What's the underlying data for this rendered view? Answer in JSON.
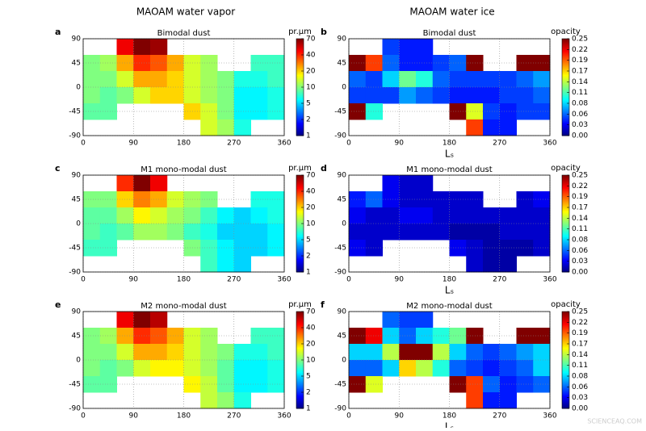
{
  "figure": {
    "column_titles": [
      "MAOAM water vapor",
      "MAOAM water ice"
    ],
    "watermark": "SCIENCEAQ.COM"
  },
  "chart_data": [
    {
      "type": "heatmap",
      "panel_label": "a",
      "title": "Bimodal dust",
      "colorbar_label": "pr.µm",
      "colorscale": "jet",
      "colorbar_ticks": [
        1,
        2,
        5,
        10,
        20,
        40,
        70
      ],
      "x": [
        15,
        45,
        75,
        105,
        135,
        165,
        195,
        225,
        255,
        285,
        315,
        345
      ],
      "y": [
        75,
        45,
        15,
        -15,
        -45,
        -75
      ],
      "xlim": [
        0,
        360
      ],
      "ylim": [
        -90,
        90
      ],
      "xticks": [
        0,
        90,
        180,
        270,
        360
      ],
      "yticks": [
        -90,
        -45,
        0,
        45,
        90
      ],
      "grid": true,
      "values": [
        [
          null,
          null,
          50,
          70,
          65,
          null,
          null,
          null,
          null,
          null,
          null,
          null
        ],
        [
          10,
          12,
          25,
          40,
          35,
          25,
          15,
          12,
          null,
          null,
          8,
          8
        ],
        [
          10,
          10,
          15,
          25,
          25,
          20,
          15,
          12,
          10,
          7,
          7,
          8
        ],
        [
          10,
          9,
          10,
          15,
          20,
          20,
          15,
          12,
          10,
          6,
          6,
          7
        ],
        [
          9,
          9,
          null,
          null,
          null,
          null,
          20,
          15,
          10,
          6,
          6,
          7
        ],
        [
          null,
          null,
          null,
          null,
          null,
          null,
          null,
          15,
          12,
          7,
          null,
          null
        ]
      ]
    },
    {
      "type": "heatmap",
      "panel_label": "b",
      "title": "Bimodal dust",
      "colorbar_label": "opacity",
      "colorscale": "jet",
      "xlabel": "Lₛ",
      "colorbar_ticks": [
        {
          "value": 0,
          "label": "0.00"
        },
        0.03,
        0.06,
        0.08,
        0.11,
        0.14,
        0.17,
        0.19,
        0.22,
        0.25
      ],
      "x": [
        15,
        45,
        75,
        105,
        135,
        165,
        195,
        225,
        255,
        285,
        315,
        345
      ],
      "y": [
        75,
        45,
        15,
        -15,
        -45,
        -75
      ],
      "xlim": [
        0,
        360
      ],
      "ylim": [
        -90,
        90
      ],
      "xticks": [
        0,
        90,
        180,
        270,
        360
      ],
      "yticks": [
        -90,
        -45,
        0,
        45,
        90
      ],
      "grid": true,
      "values": [
        [
          null,
          null,
          0.05,
          0.04,
          0.04,
          null,
          null,
          null,
          null,
          null,
          null,
          null
        ],
        [
          0.25,
          0.2,
          0.06,
          0.04,
          0.04,
          0.05,
          0.06,
          0.25,
          null,
          null,
          0.25,
          0.25
        ],
        [
          0.06,
          0.05,
          0.08,
          0.12,
          0.1,
          0.06,
          0.05,
          0.05,
          0.05,
          0.05,
          0.06,
          0.07
        ],
        [
          0.05,
          0.05,
          0.05,
          0.07,
          0.06,
          0.05,
          0.04,
          0.04,
          0.04,
          0.05,
          0.05,
          0.06
        ],
        [
          0.25,
          0.1,
          null,
          null,
          null,
          null,
          0.25,
          0.15,
          0.05,
          0.04,
          0.05,
          0.05
        ],
        [
          null,
          null,
          null,
          null,
          null,
          null,
          null,
          0.2,
          0.04,
          0.04,
          null,
          null
        ]
      ]
    },
    {
      "type": "heatmap",
      "panel_label": "c",
      "title": "M1 mono-modal dust",
      "colorbar_label": "pr.µm",
      "colorscale": "jet",
      "colorbar_ticks": [
        1,
        2,
        5,
        10,
        20,
        40,
        70
      ],
      "x": [
        15,
        45,
        75,
        105,
        135,
        165,
        195,
        225,
        255,
        285,
        315,
        345
      ],
      "y": [
        75,
        45,
        15,
        -15,
        -45,
        -75
      ],
      "xlim": [
        0,
        360
      ],
      "ylim": [
        -90,
        90
      ],
      "xticks": [
        0,
        90,
        180,
        270,
        360
      ],
      "yticks": [
        -90,
        -45,
        0,
        45,
        90
      ],
      "grid": true,
      "values": [
        [
          null,
          null,
          40,
          70,
          50,
          null,
          null,
          null,
          null,
          null,
          null,
          null
        ],
        [
          10,
          10,
          20,
          30,
          25,
          15,
          12,
          10,
          null,
          null,
          7,
          7
        ],
        [
          9,
          9,
          12,
          18,
          15,
          12,
          10,
          8,
          6,
          5,
          6,
          7
        ],
        [
          9,
          8,
          9,
          12,
          12,
          10,
          8,
          7,
          5,
          5,
          5,
          6
        ],
        [
          8,
          8,
          null,
          null,
          null,
          null,
          10,
          8,
          6,
          5,
          5,
          6
        ],
        [
          null,
          null,
          null,
          null,
          null,
          null,
          null,
          8,
          6,
          5,
          null,
          null
        ]
      ]
    },
    {
      "type": "heatmap",
      "panel_label": "d",
      "title": "M1 mono-modal dust",
      "colorbar_label": "opacity",
      "colorscale": "jet",
      "xlabel": "Lₛ",
      "colorbar_ticks": [
        {
          "value": 0,
          "label": "0.00"
        },
        0.03,
        0.06,
        0.08,
        0.11,
        0.14,
        0.17,
        0.19,
        0.22,
        0.25
      ],
      "x": [
        15,
        45,
        75,
        105,
        135,
        165,
        195,
        225,
        255,
        285,
        315,
        345
      ],
      "y": [
        75,
        45,
        15,
        -15,
        -45,
        -75
      ],
      "xlim": [
        0,
        360
      ],
      "ylim": [
        -90,
        90
      ],
      "xticks": [
        0,
        90,
        180,
        270,
        360
      ],
      "yticks": [
        -90,
        -45,
        0,
        45,
        90
      ],
      "grid": true,
      "values": [
        [
          null,
          null,
          0.03,
          0.02,
          0.02,
          null,
          null,
          null,
          null,
          null,
          null,
          null
        ],
        [
          0.04,
          0.06,
          0.03,
          0.02,
          0.02,
          0.02,
          0.02,
          0.02,
          null,
          null,
          0.02,
          0.03
        ],
        [
          0.03,
          0.02,
          0.02,
          0.03,
          0.03,
          0.02,
          0.02,
          0.02,
          0.02,
          0.02,
          0.02,
          0.02
        ],
        [
          0.02,
          0.02,
          0.02,
          0.02,
          0.02,
          0.02,
          0.01,
          0.01,
          0.01,
          0.02,
          0.02,
          0.02
        ],
        [
          0.03,
          0.02,
          null,
          null,
          null,
          null,
          0.03,
          0.02,
          0.01,
          0.01,
          0.01,
          0.02
        ],
        [
          null,
          null,
          null,
          null,
          null,
          null,
          null,
          0.02,
          0.01,
          0.01,
          null,
          null
        ]
      ]
    },
    {
      "type": "heatmap",
      "panel_label": "e",
      "title": "M2 mono-modal dust",
      "colorbar_label": "pr.µm",
      "colorscale": "jet",
      "colorbar_ticks": [
        1,
        2,
        5,
        10,
        20,
        40,
        70
      ],
      "x": [
        15,
        45,
        75,
        105,
        135,
        165,
        195,
        225,
        255,
        285,
        315,
        345
      ],
      "y": [
        75,
        45,
        15,
        -15,
        -45,
        -75
      ],
      "xlim": [
        0,
        360
      ],
      "ylim": [
        -90,
        90
      ],
      "xticks": [
        0,
        90,
        180,
        270,
        360
      ],
      "yticks": [
        -90,
        -45,
        0,
        45,
        90
      ],
      "grid": true,
      "values": [
        [
          null,
          null,
          50,
          70,
          60,
          null,
          null,
          null,
          null,
          null,
          null,
          null
        ],
        [
          10,
          12,
          25,
          40,
          35,
          25,
          15,
          12,
          null,
          null,
          8,
          8
        ],
        [
          10,
          10,
          15,
          25,
          25,
          20,
          15,
          12,
          10,
          7,
          7,
          8
        ],
        [
          10,
          9,
          10,
          15,
          18,
          18,
          15,
          12,
          9,
          6,
          6,
          7
        ],
        [
          9,
          9,
          null,
          null,
          null,
          null,
          18,
          14,
          9,
          6,
          6,
          7
        ],
        [
          null,
          null,
          null,
          null,
          null,
          null,
          null,
          14,
          11,
          7,
          null,
          null
        ]
      ]
    },
    {
      "type": "heatmap",
      "panel_label": "f",
      "title": "M2 mono-modal dust",
      "colorbar_label": "opacity",
      "colorscale": "jet",
      "xlabel": "Lₛ",
      "colorbar_ticks": [
        {
          "value": 0,
          "label": "0.00"
        },
        0.03,
        0.06,
        0.08,
        0.11,
        0.14,
        0.17,
        0.19,
        0.22,
        0.25
      ],
      "x": [
        15,
        45,
        75,
        105,
        135,
        165,
        195,
        225,
        255,
        285,
        315,
        345
      ],
      "y": [
        75,
        45,
        15,
        -15,
        -45,
        -75
      ],
      "xlim": [
        0,
        360
      ],
      "ylim": [
        -90,
        90
      ],
      "xticks": [
        0,
        90,
        180,
        270,
        360
      ],
      "yticks": [
        -90,
        -45,
        0,
        45,
        90
      ],
      "grid": true,
      "values": [
        [
          null,
          null,
          0.06,
          0.05,
          0.05,
          null,
          null,
          null,
          null,
          null,
          null,
          null
        ],
        [
          0.25,
          0.22,
          0.08,
          0.06,
          0.08,
          0.1,
          0.12,
          0.25,
          null,
          null,
          0.25,
          0.25
        ],
        [
          0.08,
          0.08,
          0.14,
          0.25,
          0.25,
          0.14,
          0.08,
          0.06,
          0.05,
          0.06,
          0.07,
          0.08
        ],
        [
          0.06,
          0.06,
          0.08,
          0.17,
          0.14,
          0.1,
          0.06,
          0.05,
          0.04,
          0.05,
          0.06,
          0.08
        ],
        [
          0.25,
          0.15,
          null,
          null,
          null,
          null,
          0.25,
          0.2,
          0.06,
          0.04,
          0.05,
          0.06
        ],
        [
          null,
          null,
          null,
          null,
          null,
          null,
          null,
          0.2,
          0.04,
          0.04,
          null,
          null
        ]
      ]
    }
  ]
}
